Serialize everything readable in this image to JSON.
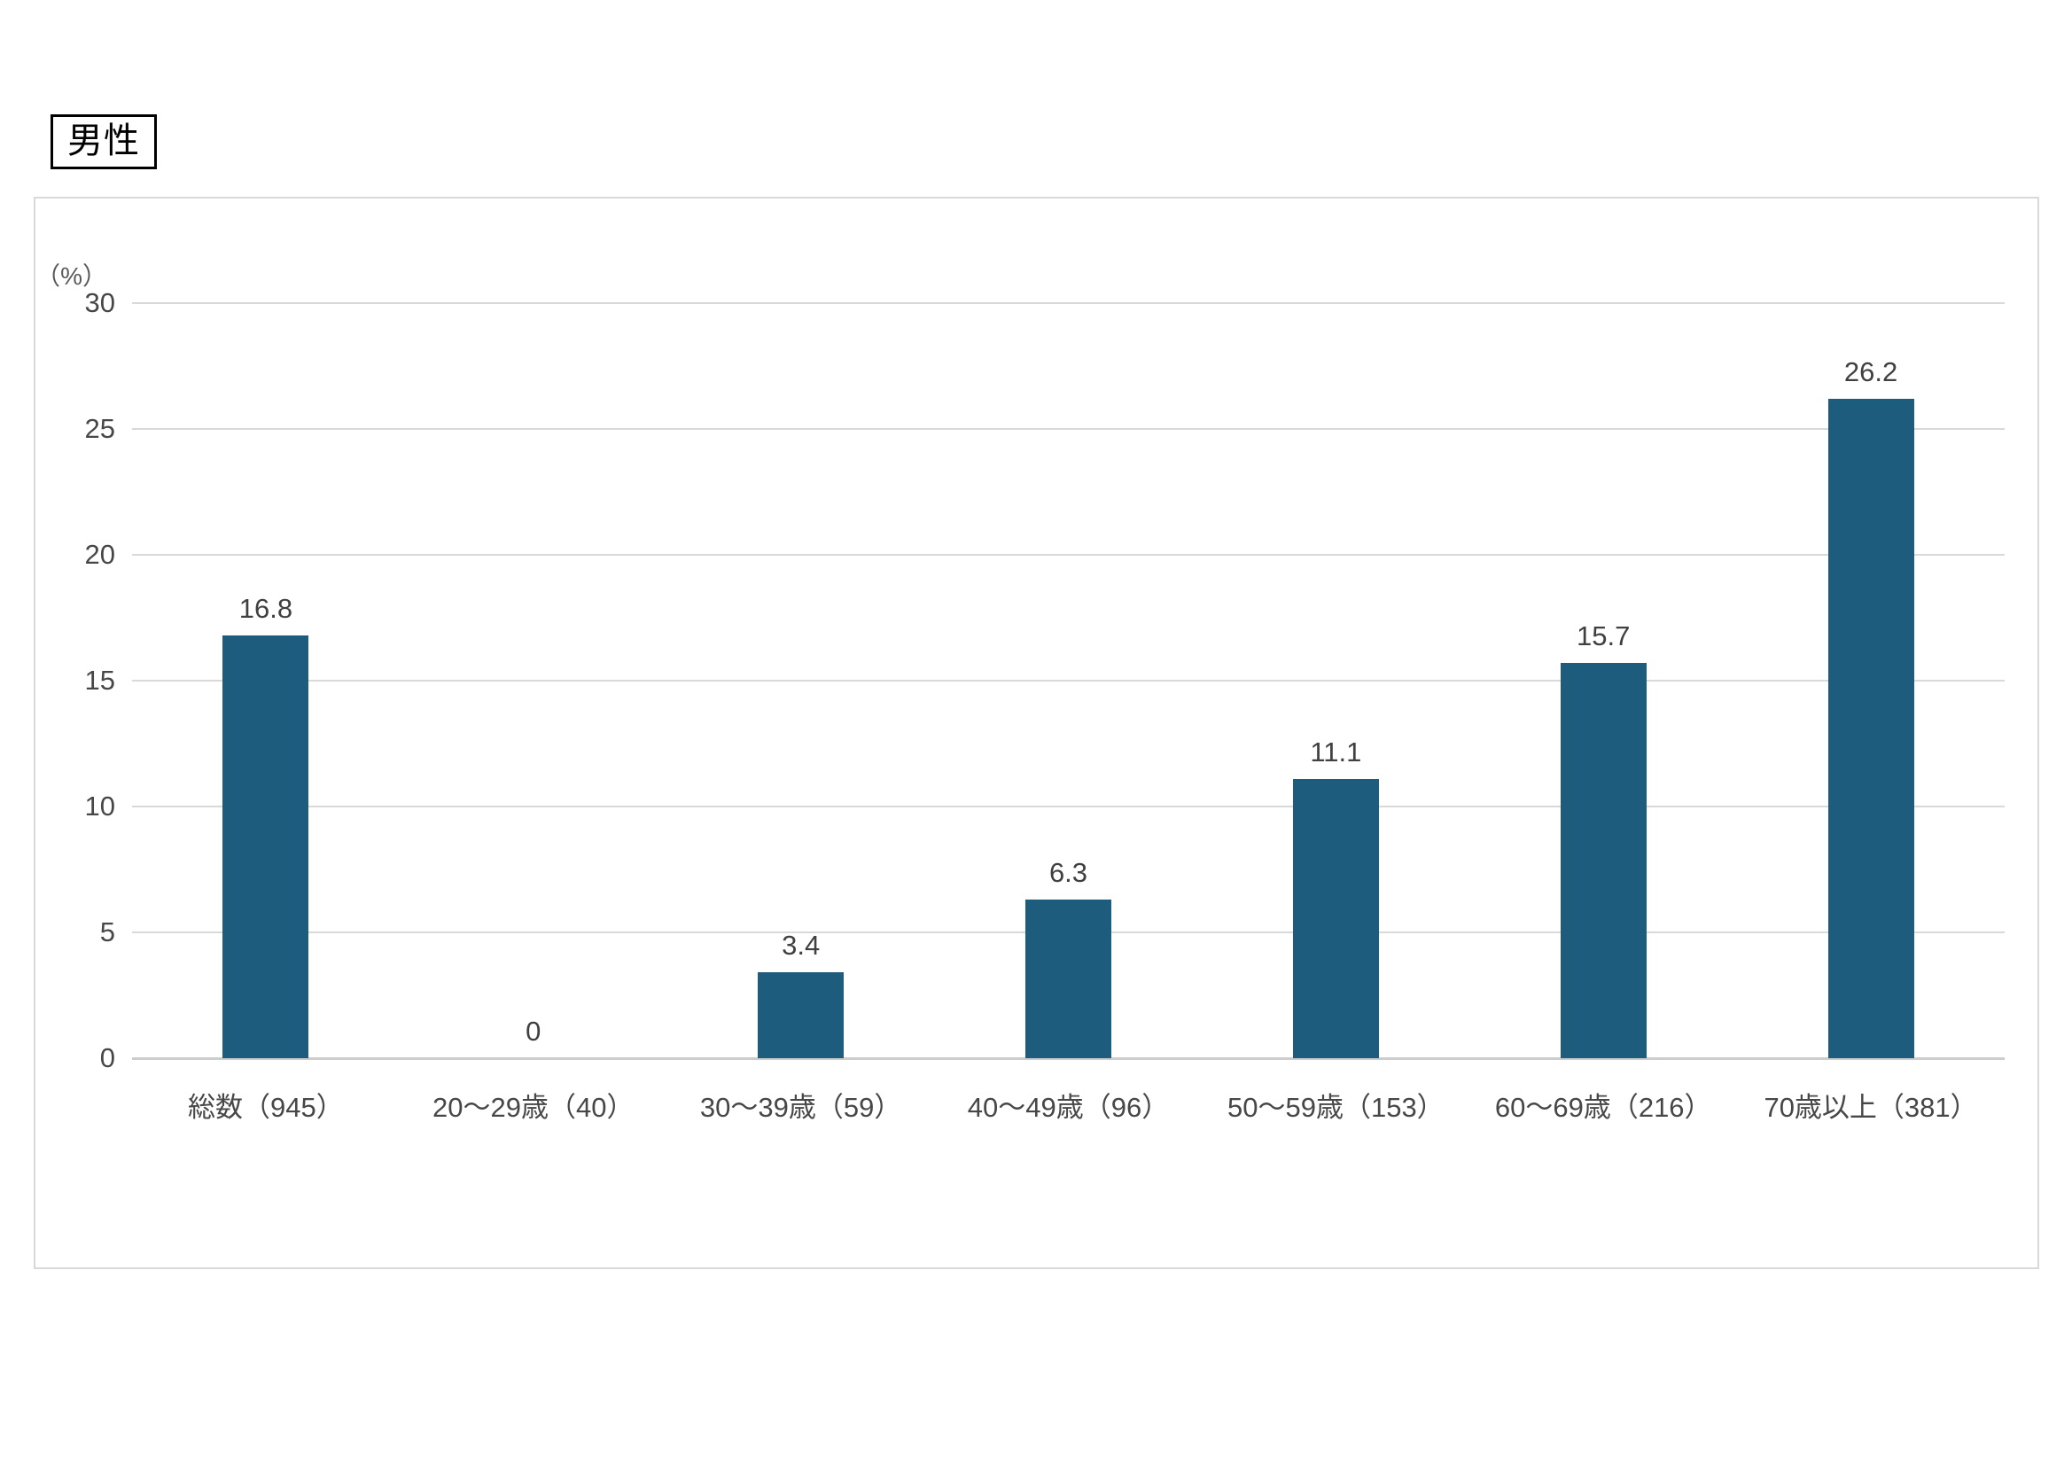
{
  "title": "男性",
  "chart_data": {
    "type": "bar",
    "title": "男性",
    "xlabel": "",
    "ylabel": "（%）",
    "categories": [
      "総数（945）",
      "20～29歳（40）",
      "30～39歳（59）",
      "40～49歳（96）",
      "50～59歳（153）",
      "60～69歳（216）",
      "70歳以上（381）"
    ],
    "values": [
      16.8,
      0,
      3.4,
      6.3,
      11.1,
      15.7,
      26.2
    ],
    "value_labels": [
      "16.8",
      "0",
      "3.4",
      "6.3",
      "11.1",
      "15.7",
      "26.2"
    ],
    "ylim": [
      0,
      30
    ],
    "yticks": [
      0,
      5,
      10,
      15,
      20,
      25,
      30
    ],
    "grid": true,
    "legend_position": "none",
    "colors": {
      "bar": "#1d5c7d",
      "grid": "#d9d9d9",
      "baseline": "#cccccc",
      "tick_text": "#474747",
      "value_text": "#404040",
      "frame_border": "#d9d9d9",
      "title_border": "#000000"
    }
  }
}
